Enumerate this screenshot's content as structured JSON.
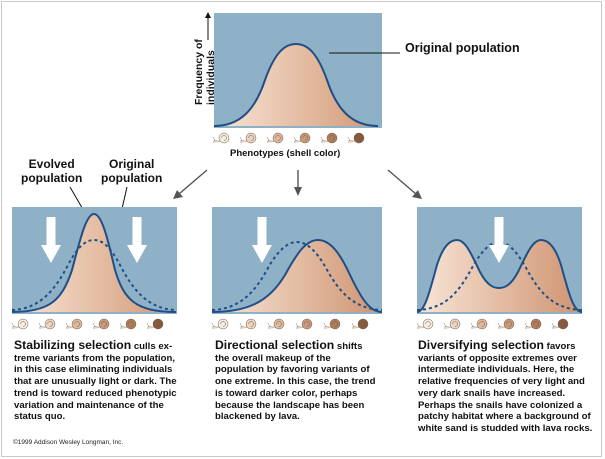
{
  "top_panel": {
    "y_axis_label": "Frequency of individuals",
    "curve_label": "Original population",
    "x_axis_label": "Phenotypes (shell color)"
  },
  "left_labels": {
    "evolved": [
      "Evolved",
      "population"
    ],
    "original": [
      "Original",
      "population"
    ]
  },
  "panels": [
    {
      "title": "Stabilizing selection",
      "lines": [
        " culls ex-",
        "treme variants from the population,",
        "in this case eliminating individuals",
        "that are unusually light or dark. The",
        "trend is toward reduced phenotypic",
        "variation and maintenance of the",
        "status quo."
      ]
    },
    {
      "title": "Directional selection",
      "lines": [
        " shifts",
        "the overall makeup of the",
        "population by favoring variants of",
        "one extreme. In this case, the trend",
        "is toward darker color, perhaps",
        "because the landscape has been",
        "blackened by lava."
      ]
    },
    {
      "title": "Diversifying selection",
      "lines": [
        " favors",
        "variants of opposite extremes over",
        "intermediate individuals. Here, the",
        "relative frequencies of very light and",
        "very dark snails have increased.",
        "Perhaps the snails have colonized a",
        "patchy habitat where a background of",
        "white sand is studded with lava rocks."
      ]
    }
  ],
  "copyright": "©1999 Addison Wesley Longman, Inc.",
  "colors": {
    "panel_bg": "#8fb1c8",
    "curve_line": "#1f4f86",
    "fill_light": "#f6e2d3",
    "fill_dark": "#d49a78",
    "arrow_white": "#ffffff",
    "connector_arrow": "#555555"
  },
  "icons": {
    "snail": "snail-icon",
    "selection_arrow": "down-arrow-icon"
  }
}
